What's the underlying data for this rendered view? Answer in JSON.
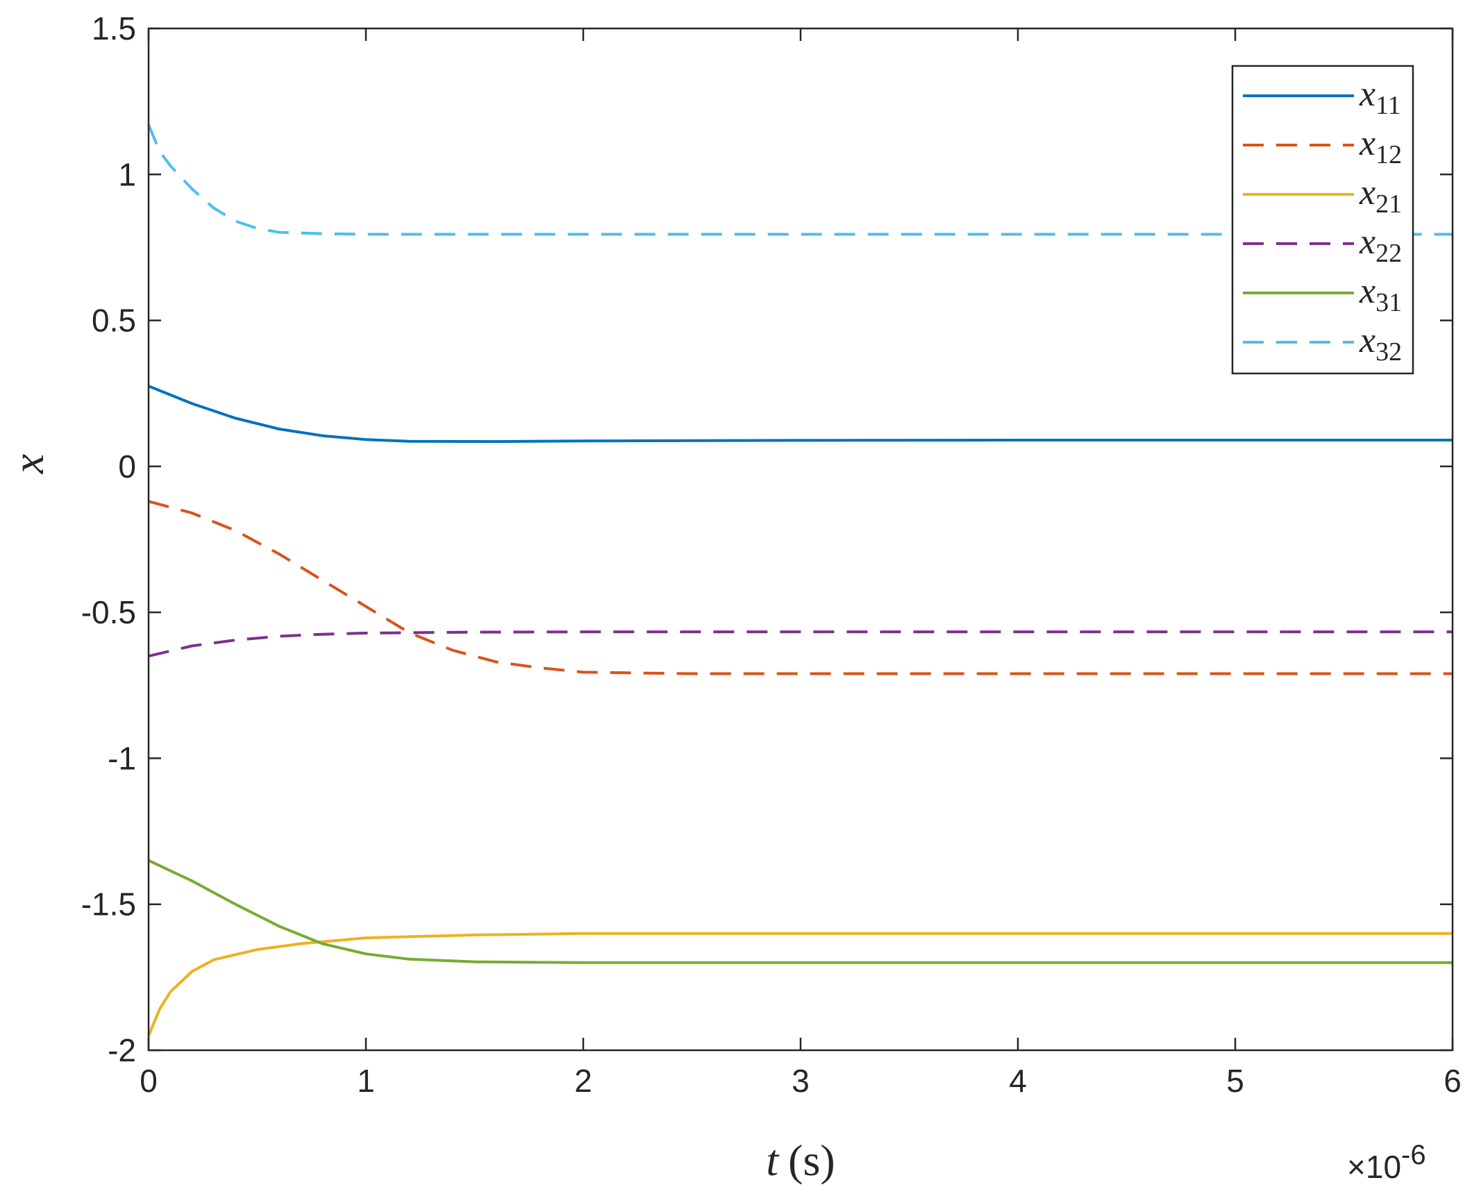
{
  "chart_data": {
    "type": "line",
    "xlabel_var": "t",
    "xlabel_unit": "(s)",
    "ylabel": "x",
    "x_exponent_label": "×10",
    "x_exponent_power": "-6",
    "xlim": [
      0,
      6
    ],
    "ylim": [
      -2,
      1.5
    ],
    "x_ticks": [
      0,
      1,
      2,
      3,
      4,
      5,
      6
    ],
    "x_tick_labels": [
      "0",
      "1",
      "2",
      "3",
      "4",
      "5",
      "6"
    ],
    "y_ticks": [
      1.5,
      1,
      0.5,
      0,
      -0.5,
      -1,
      -1.5,
      -2
    ],
    "y_tick_labels": [
      "1.5",
      "1",
      "0.5",
      "0",
      "-0.5",
      "-1",
      "-1.5",
      "-2"
    ],
    "grid": false,
    "legend_position": "top-right",
    "series": [
      {
        "name": "x",
        "sub": "11",
        "color": "#0072BD",
        "dash": "solid",
        "points": [
          [
            0,
            0.275
          ],
          [
            0.2,
            0.215
          ],
          [
            0.4,
            0.165
          ],
          [
            0.6,
            0.128
          ],
          [
            0.8,
            0.105
          ],
          [
            1.0,
            0.092
          ],
          [
            1.2,
            0.086
          ],
          [
            1.6,
            0.085
          ],
          [
            2.0,
            0.087
          ],
          [
            3.0,
            0.089
          ],
          [
            4.0,
            0.09
          ],
          [
            6.0,
            0.09
          ]
        ]
      },
      {
        "name": "x",
        "sub": "12",
        "color": "#D95319",
        "dash": "dashed",
        "points": [
          [
            0,
            -0.12
          ],
          [
            0.2,
            -0.16
          ],
          [
            0.4,
            -0.22
          ],
          [
            0.6,
            -0.3
          ],
          [
            0.8,
            -0.39
          ],
          [
            1.0,
            -0.48
          ],
          [
            1.2,
            -0.57
          ],
          [
            1.4,
            -0.63
          ],
          [
            1.6,
            -0.67
          ],
          [
            1.8,
            -0.69
          ],
          [
            2.0,
            -0.705
          ],
          [
            2.5,
            -0.71
          ],
          [
            3.0,
            -0.71
          ],
          [
            6.0,
            -0.71
          ]
        ]
      },
      {
        "name": "x",
        "sub": "21",
        "color": "#EDB120",
        "dash": "solid",
        "points": [
          [
            0,
            -1.95
          ],
          [
            0.05,
            -1.86
          ],
          [
            0.1,
            -1.8
          ],
          [
            0.2,
            -1.73
          ],
          [
            0.3,
            -1.69
          ],
          [
            0.5,
            -1.655
          ],
          [
            0.7,
            -1.635
          ],
          [
            1.0,
            -1.615
          ],
          [
            1.5,
            -1.605
          ],
          [
            2.0,
            -1.6
          ],
          [
            6.0,
            -1.6
          ]
        ]
      },
      {
        "name": "x",
        "sub": "22",
        "color": "#7E2F8E",
        "dash": "dashed",
        "points": [
          [
            0,
            -0.65
          ],
          [
            0.2,
            -0.615
          ],
          [
            0.4,
            -0.595
          ],
          [
            0.6,
            -0.582
          ],
          [
            0.8,
            -0.575
          ],
          [
            1.0,
            -0.571
          ],
          [
            1.5,
            -0.568
          ],
          [
            2.0,
            -0.567
          ],
          [
            6.0,
            -0.567
          ]
        ]
      },
      {
        "name": "x",
        "sub": "31",
        "color": "#77AC30",
        "dash": "solid",
        "points": [
          [
            0,
            -1.35
          ],
          [
            0.2,
            -1.42
          ],
          [
            0.4,
            -1.5
          ],
          [
            0.6,
            -1.575
          ],
          [
            0.8,
            -1.635
          ],
          [
            1.0,
            -1.67
          ],
          [
            1.2,
            -1.688
          ],
          [
            1.5,
            -1.697
          ],
          [
            2.0,
            -1.7
          ],
          [
            6.0,
            -1.7
          ]
        ]
      },
      {
        "name": "x",
        "sub": "32",
        "color": "#4DBEEE",
        "dash": "dashed",
        "points": [
          [
            0,
            1.17
          ],
          [
            0.05,
            1.08
          ],
          [
            0.1,
            1.03
          ],
          [
            0.2,
            0.95
          ],
          [
            0.3,
            0.885
          ],
          [
            0.4,
            0.84
          ],
          [
            0.5,
            0.815
          ],
          [
            0.6,
            0.802
          ],
          [
            0.8,
            0.797
          ],
          [
            1.0,
            0.795
          ],
          [
            6.0,
            0.795
          ]
        ]
      }
    ]
  }
}
